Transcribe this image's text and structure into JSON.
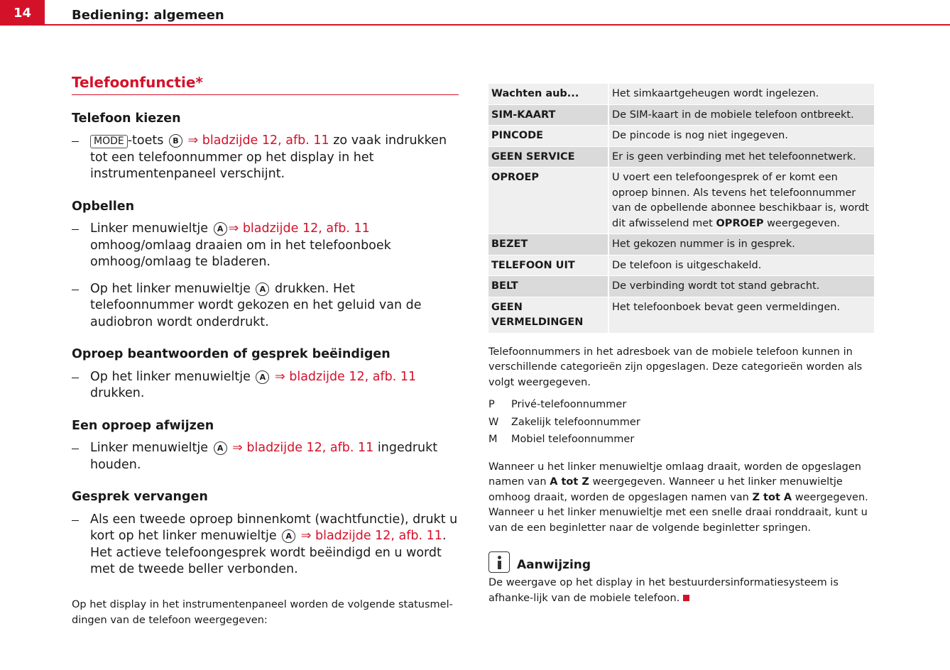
{
  "header": {
    "page_number": "14",
    "title": "Bediening: algemeen"
  },
  "left": {
    "title": "Telefoonfunctie*",
    "sections": [
      {
        "heading": "Telefoon kiezen",
        "items": [
          [
            {
              "key": "MODE"
            },
            {
              "text": "-toets "
            },
            {
              "circle": "B"
            },
            {
              "link": " ⇒ bladzijde 12, afb. 11"
            },
            {
              "text": " zo vaak indrukken tot een telefoonnummer op het display in het instrumentenpaneel verschijnt."
            }
          ]
        ]
      },
      {
        "heading": "Opbellen",
        "items": [
          [
            {
              "text": "Linker menuwieltje "
            },
            {
              "circle": "A"
            },
            {
              "link": "⇒ bladzijde 12, afb. 11"
            },
            {
              "text": " omhoog/omlaag draaien om in het telefoonboek omhoog/omlaag te bladeren."
            }
          ],
          [
            {
              "text": "Op het linker menuwieltje "
            },
            {
              "circle": "A"
            },
            {
              "text": " drukken. Het telefoonnummer wordt gekozen en het geluid van de audiobron wordt onderdrukt."
            }
          ]
        ]
      },
      {
        "heading": "Oproep beantwoorden of gesprek beëindigen",
        "items": [
          [
            {
              "text": "Op het linker menuwieltje "
            },
            {
              "circle": "A"
            },
            {
              "link": " ⇒ bladzijde 12, afb. 11"
            },
            {
              "text": " drukken."
            }
          ]
        ]
      },
      {
        "heading": "Een oproep afwijzen",
        "items": [
          [
            {
              "text": "Linker menuwieltje "
            },
            {
              "circle": "A"
            },
            {
              "link": " ⇒ bladzijde 12, afb. 11"
            },
            {
              "text": " ingedrukt houden."
            }
          ]
        ]
      },
      {
        "heading": "Gesprek vervangen",
        "items": [
          [
            {
              "text": "Als een tweede oproep binnenkomt (wachtfunctie), drukt u kort op het linker menuwieltje "
            },
            {
              "circle": "A"
            },
            {
              "link": " ⇒ bladzijde 12, afb. 11"
            },
            {
              "text": ". Het actieve telefoongesprek wordt beëindigd en u wordt met de tweede beller verbonden."
            }
          ]
        ]
      }
    ],
    "footer_paragraph": "Op het display in het instrumentenpaneel worden de volgende statusmel-dingen van de telefoon weergegeven:"
  },
  "right": {
    "table": {
      "rows": [
        [
          "Wachten aub...",
          "Het simkaartgeheugen wordt ingelezen."
        ],
        [
          "SIM-KAART",
          "De SIM-kaart in de mobiele telefoon ontbreekt."
        ],
        [
          "PINCODE",
          "De pincode is nog niet ingegeven."
        ],
        [
          "GEEN SERVICE",
          "Er is geen verbinding met het telefoonnetwerk."
        ],
        [
          "OPROEP",
          [
            {
              "text": "U voert een telefoongesprek of er komt een oproep binnen. Als tevens het telefoonnummer van de opbellende abonnee beschikbaar is, wordt dit afwisselend met "
            },
            {
              "bold": "OPROEP"
            },
            {
              "text": " weergegeven."
            }
          ]
        ],
        [
          "BEZET",
          "Het gekozen nummer is in gesprek."
        ],
        [
          "TELEFOON UIT",
          "De telefoon is uitgeschakeld."
        ],
        [
          "BELT",
          "De verbinding wordt tot stand gebracht."
        ],
        [
          "GEEN VERMELDINGEN",
          "Het telefoonboek bevat geen vermeldingen."
        ]
      ]
    },
    "paragraph": "Telefoonnummers in het adresboek van de mobiele telefoon kunnen in verschillende categorieën zijn opgeslagen. Deze categorieën worden als volgt weergegeven.",
    "list": [
      {
        "letter": "P",
        "text": "Privé-telefoonnummer"
      },
      {
        "letter": "W",
        "text": "Zakelijk telefoonnummer"
      },
      {
        "letter": "M",
        "text": "Mobiel telefoonnummer"
      }
    ],
    "paragraph2": [
      {
        "text": "Wanneer u het linker menuwieltje omlaag draait, worden de opgeslagen namen van "
      },
      {
        "bold": "A tot Z"
      },
      {
        "text": " weergegeven. Wanneer u het linker menuwieltje omhoog draait, worden de opgeslagen namen van "
      },
      {
        "bold": "Z tot A"
      },
      {
        "text": " weergegeven. Wanneer u het linker menuwieltje met een snelle draai ronddraait, kunt u van de een beginletter naar de volgende beginletter springen."
      }
    ],
    "note": {
      "title": "Aanwijzing",
      "text": "De weergave op het display in het bestuurdersinformatiesysteem is afhanke-lijk van de mobiele telefoon."
    }
  }
}
